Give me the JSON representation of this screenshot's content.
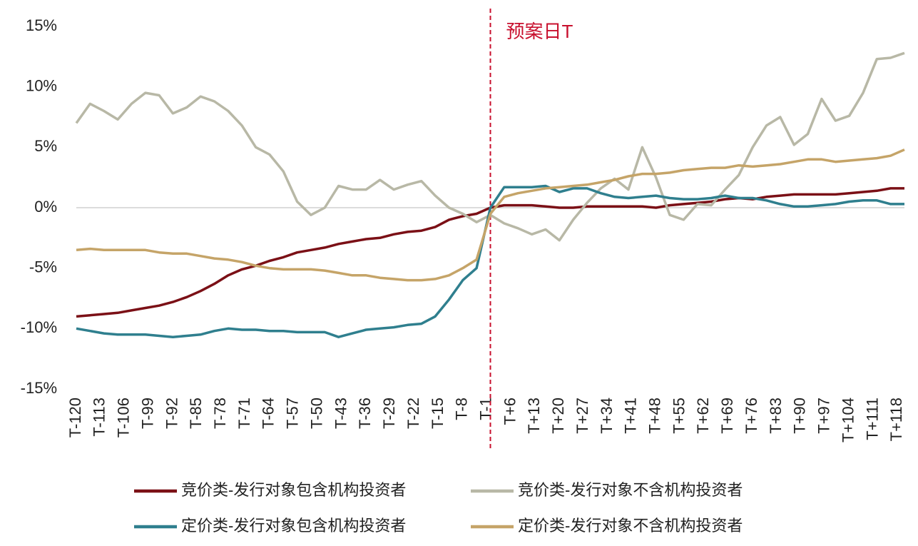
{
  "chart_data": {
    "type": "line",
    "annotation": {
      "text": "预案日T",
      "x": 0
    },
    "xlim": [
      -120,
      120
    ],
    "ylim": [
      -15,
      15
    ],
    "yticks": [
      {
        "value": -15,
        "label": "-15%"
      },
      {
        "value": -10,
        "label": "-10%"
      },
      {
        "value": -5,
        "label": "-5%"
      },
      {
        "value": 0,
        "label": "0%"
      },
      {
        "value": 5,
        "label": "5%"
      },
      {
        "value": 10,
        "label": "10%"
      },
      {
        "value": 15,
        "label": "15%"
      }
    ],
    "xticks": [
      {
        "value": -120,
        "label": "T-120"
      },
      {
        "value": -113,
        "label": "T-113"
      },
      {
        "value": -106,
        "label": "T-106"
      },
      {
        "value": -99,
        "label": "T-99"
      },
      {
        "value": -92,
        "label": "T-92"
      },
      {
        "value": -85,
        "label": "T-85"
      },
      {
        "value": -78,
        "label": "T-78"
      },
      {
        "value": -71,
        "label": "T-71"
      },
      {
        "value": -64,
        "label": "T-64"
      },
      {
        "value": -57,
        "label": "T-57"
      },
      {
        "value": -50,
        "label": "T-50"
      },
      {
        "value": -43,
        "label": "T-43"
      },
      {
        "value": -36,
        "label": "T-36"
      },
      {
        "value": -29,
        "label": "T-29"
      },
      {
        "value": -22,
        "label": "T-22"
      },
      {
        "value": -15,
        "label": "T-15"
      },
      {
        "value": -8,
        "label": "T-8"
      },
      {
        "value": -1,
        "label": "T-1"
      },
      {
        "value": 6,
        "label": "T+6"
      },
      {
        "value": 13,
        "label": "T+13"
      },
      {
        "value": 20,
        "label": "T+20"
      },
      {
        "value": 27,
        "label": "T+27"
      },
      {
        "value": 34,
        "label": "T+34"
      },
      {
        "value": 41,
        "label": "T+41"
      },
      {
        "value": 48,
        "label": "T+48"
      },
      {
        "value": 55,
        "label": "T+55"
      },
      {
        "value": 62,
        "label": "T+62"
      },
      {
        "value": 69,
        "label": "T+69"
      },
      {
        "value": 76,
        "label": "T+76"
      },
      {
        "value": 83,
        "label": "T+83"
      },
      {
        "value": 90,
        "label": "T+90"
      },
      {
        "value": 97,
        "label": "T+97"
      },
      {
        "value": 104,
        "label": "T+104"
      },
      {
        "value": 111,
        "label": "T+111"
      },
      {
        "value": 118,
        "label": "T+118"
      }
    ],
    "x": [
      -120,
      -116,
      -112,
      -108,
      -104,
      -100,
      -96,
      -92,
      -88,
      -84,
      -80,
      -76,
      -72,
      -68,
      -64,
      -60,
      -56,
      -52,
      -48,
      -44,
      -40,
      -36,
      -32,
      -28,
      -24,
      -20,
      -16,
      -12,
      -8,
      -4,
      0,
      4,
      8,
      12,
      16,
      20,
      24,
      28,
      32,
      36,
      40,
      44,
      48,
      52,
      56,
      60,
      64,
      68,
      72,
      76,
      80,
      84,
      88,
      92,
      96,
      100,
      104,
      108,
      112,
      116,
      120
    ],
    "series": [
      {
        "name": "竞价类-发行对象包含机构投资者",
        "color": "#7b1016",
        "values": [
          -9,
          -8.9,
          -8.8,
          -8.7,
          -8.5,
          -8.3,
          -8.1,
          -7.8,
          -7.4,
          -6.9,
          -6.3,
          -5.6,
          -5.1,
          -4.8,
          -4.4,
          -4.1,
          -3.7,
          -3.5,
          -3.3,
          -3.0,
          -2.8,
          -2.6,
          -2.5,
          -2.2,
          -2.0,
          -1.9,
          -1.6,
          -1.0,
          -0.7,
          -0.5,
          0,
          0.2,
          0.2,
          0.2,
          0.1,
          0,
          0,
          0.1,
          0.1,
          0.1,
          0.1,
          0.1,
          0,
          0.2,
          0.3,
          0.4,
          0.5,
          0.7,
          0.8,
          0.7,
          0.9,
          1.0,
          1.1,
          1.1,
          1.1,
          1.1,
          1.2,
          1.3,
          1.4,
          1.6,
          1.6
        ]
      },
      {
        "name": "竞价类-发行对象不含机构投资者",
        "color": "#b8b8a6",
        "values": [
          7,
          8.6,
          8,
          7.3,
          8.6,
          9.5,
          9.3,
          7.8,
          8.3,
          9.2,
          8.8,
          8.0,
          6.8,
          5.0,
          4.4,
          3.0,
          0.5,
          -0.6,
          0,
          1.8,
          1.5,
          1.5,
          2.3,
          1.5,
          1.9,
          2.2,
          1.0,
          0,
          -0.5,
          -1.2,
          -0.6,
          -1.3,
          -1.7,
          -2.2,
          -1.8,
          -2.7,
          -1.0,
          0.4,
          1.6,
          2.4,
          1.5,
          5.0,
          2.5,
          -0.6,
          -1.0,
          0.3,
          0.2,
          1.5,
          2.7,
          5.0,
          6.8,
          7.5,
          5.2,
          6.1,
          9.0,
          7.2,
          7.6,
          9.5,
          12.3,
          12.4,
          12.8
        ]
      },
      {
        "name": "定价类-发行对象包含机构投资者",
        "color": "#2f7f8e",
        "values": [
          -10,
          -10.2,
          -10.4,
          -10.5,
          -10.5,
          -10.5,
          -10.6,
          -10.7,
          -10.6,
          -10.5,
          -10.2,
          -10.0,
          -10.1,
          -10.1,
          -10.2,
          -10.2,
          -10.3,
          -10.3,
          -10.3,
          -10.7,
          -10.4,
          -10.1,
          -10.0,
          -9.9,
          -9.7,
          -9.6,
          -9.0,
          -7.6,
          -6.0,
          -5.0,
          0,
          1.7,
          1.7,
          1.7,
          1.8,
          1.3,
          1.6,
          1.6,
          1.2,
          0.9,
          0.8,
          0.9,
          1.0,
          0.8,
          0.7,
          0.7,
          0.8,
          1.0,
          0.8,
          0.8,
          0.6,
          0.3,
          0.1,
          0.1,
          0.2,
          0.3,
          0.5,
          0.6,
          0.6,
          0.3,
          0.3
        ]
      },
      {
        "name": "定价类-发行对象不含机构投资者",
        "color": "#c5a468",
        "values": [
          -3.5,
          -3.4,
          -3.5,
          -3.5,
          -3.5,
          -3.5,
          -3.7,
          -3.8,
          -3.8,
          -4.0,
          -4.2,
          -4.3,
          -4.5,
          -4.8,
          -5.0,
          -5.1,
          -5.1,
          -5.1,
          -5.2,
          -5.4,
          -5.6,
          -5.6,
          -5.8,
          -5.9,
          -6.0,
          -6.0,
          -5.9,
          -5.6,
          -5.0,
          -4.3,
          -0.5,
          0.9,
          1.2,
          1.4,
          1.6,
          1.7,
          1.8,
          1.9,
          2.1,
          2.3,
          2.6,
          2.8,
          2.8,
          2.9,
          3.1,
          3.2,
          3.3,
          3.3,
          3.5,
          3.4,
          3.5,
          3.6,
          3.8,
          4.0,
          4.0,
          3.8,
          3.9,
          4.0,
          4.1,
          4.3,
          4.8
        ]
      }
    ]
  }
}
